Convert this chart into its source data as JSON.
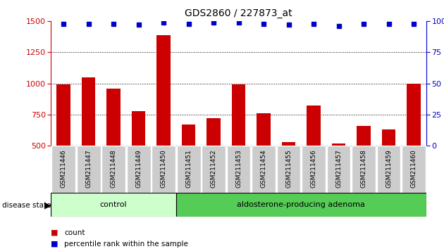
{
  "title": "GDS2860 / 227873_at",
  "categories": [
    "GSM211446",
    "GSM211447",
    "GSM211448",
    "GSM211449",
    "GSM211450",
    "GSM211451",
    "GSM211452",
    "GSM211453",
    "GSM211454",
    "GSM211455",
    "GSM211456",
    "GSM211457",
    "GSM211458",
    "GSM211459",
    "GSM211460"
  ],
  "counts": [
    990,
    1050,
    960,
    780,
    1390,
    670,
    720,
    990,
    760,
    530,
    820,
    515,
    660,
    630,
    1000
  ],
  "percentiles": [
    98,
    98,
    98,
    97,
    99,
    98,
    99,
    99,
    98,
    97,
    98,
    96,
    98,
    98,
    98
  ],
  "bar_color": "#cc0000",
  "dot_color": "#0000cc",
  "ylim_left": [
    500,
    1500
  ],
  "ylim_right": [
    0,
    100
  ],
  "yticks_left": [
    500,
    750,
    1000,
    1250,
    1500
  ],
  "yticks_right": [
    0,
    25,
    50,
    75,
    100
  ],
  "control_count": 5,
  "group1_label": "control",
  "group2_label": "aldosterone-producing adenoma",
  "group1_color": "#ccffcc",
  "group2_color": "#55cc55",
  "disease_state_label": "disease state",
  "legend_items": [
    {
      "label": "count",
      "color": "#cc0000"
    },
    {
      "label": "percentile rank within the sample",
      "color": "#0000cc"
    }
  ],
  "bar_color_left_axis": "#cc0000",
  "right_axis_color": "#0000cc",
  "background_color": "#ffffff",
  "bar_width": 0.55,
  "tick_label_bg": "#cccccc",
  "tick_label_sep_color": "#ffffff"
}
